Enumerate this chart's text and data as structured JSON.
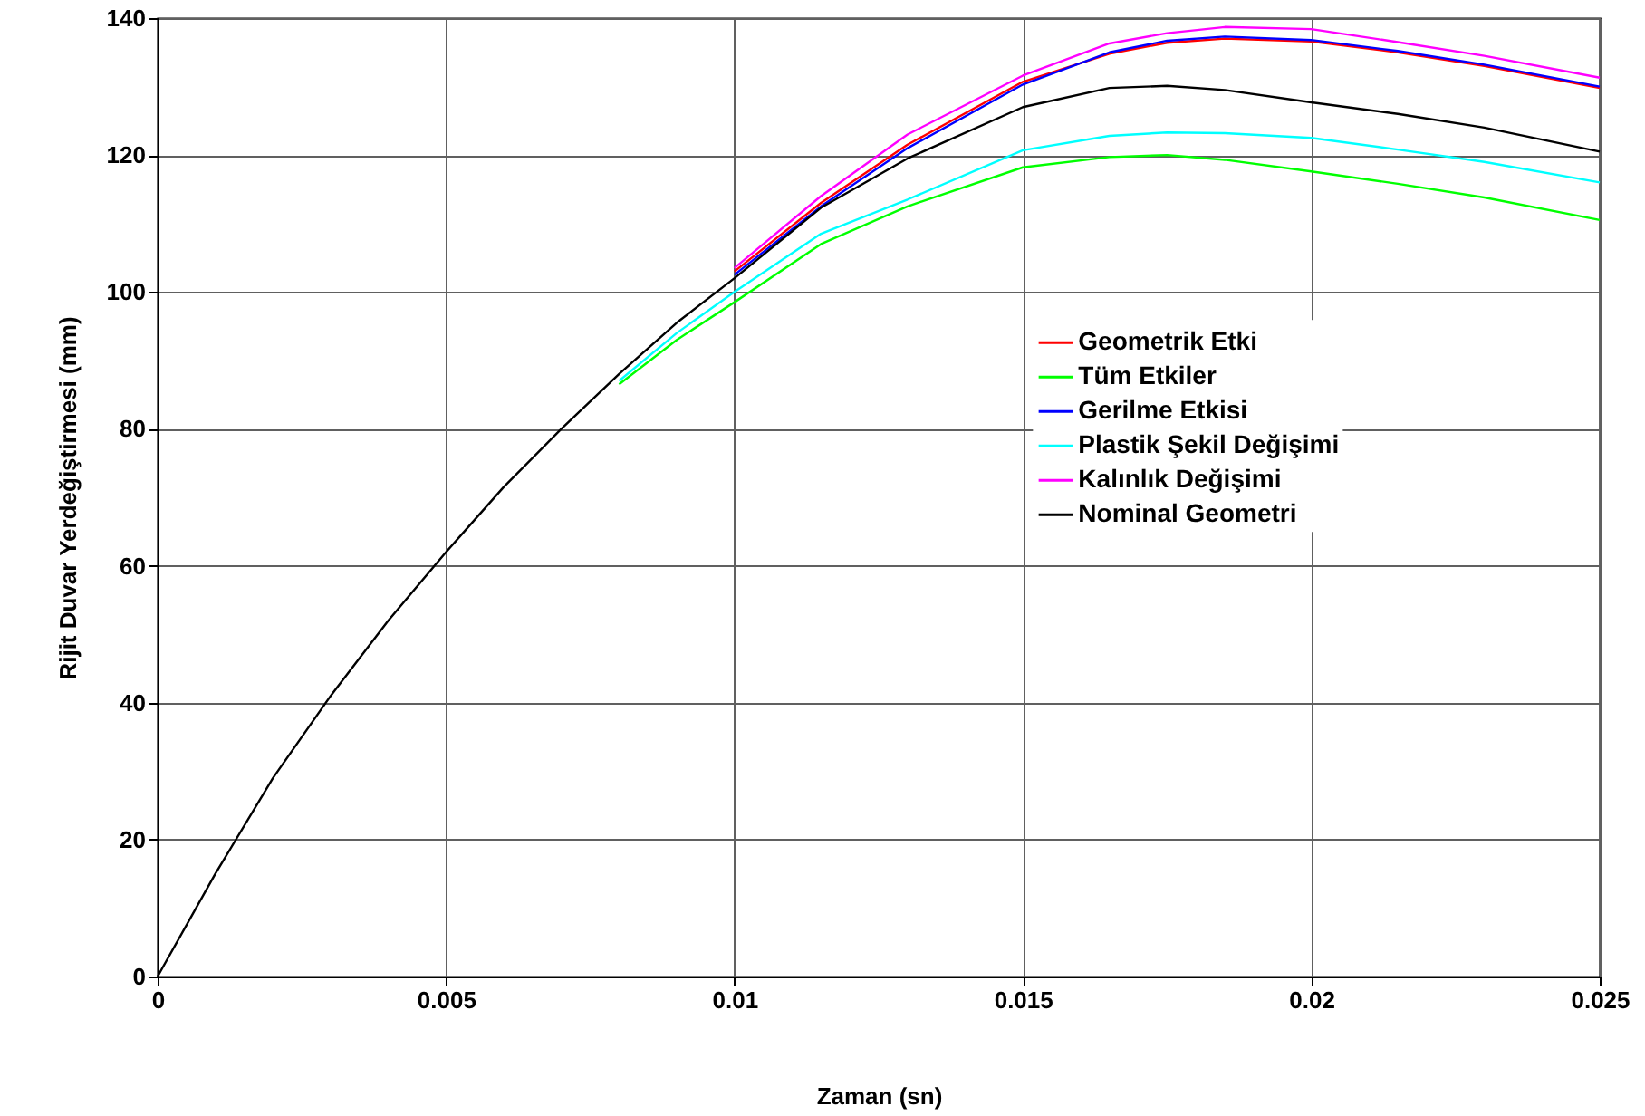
{
  "chart_data": {
    "type": "line",
    "xlabel": "Zaman (sn)",
    "ylabel": "Rijit Duvar Yerdeğiştirmesi (mm)",
    "x": [
      0,
      0.001,
      0.002,
      0.003,
      0.004,
      0.005,
      0.006,
      0.007,
      0.008,
      0.009,
      0.01,
      0.0115,
      0.013,
      0.015,
      0.0165,
      0.0175,
      0.0185,
      0.02,
      0.0215,
      0.023,
      0.025
    ],
    "series": [
      {
        "name": "Geometrik Etki",
        "color": "#ff0000",
        "values": [
          null,
          null,
          null,
          null,
          null,
          null,
          null,
          null,
          null,
          null,
          103,
          113,
          121.5,
          130.7,
          134.8,
          136.4,
          137,
          136.6,
          135,
          133,
          129.8
        ]
      },
      {
        "name": "Tüm Etkiler",
        "color": "#00ff00",
        "values": [
          null,
          null,
          null,
          null,
          null,
          null,
          null,
          null,
          86.5,
          93,
          98.5,
          107,
          112.5,
          118.2,
          119.7,
          120,
          119.3,
          117.6,
          115.8,
          113.8,
          110.5
        ]
      },
      {
        "name": "Gerilme Etkisi",
        "color": "#0000ff",
        "values": [
          null,
          null,
          null,
          null,
          null,
          null,
          null,
          null,
          null,
          null,
          102.5,
          112.5,
          121,
          130.3,
          135,
          136.7,
          137.3,
          136.8,
          135.2,
          133.2,
          130
        ]
      },
      {
        "name": "Plastik Şekil Değişimi",
        "color": "#00ffff",
        "values": [
          null,
          null,
          null,
          null,
          null,
          null,
          null,
          null,
          87,
          94,
          100,
          108.5,
          113.5,
          120.7,
          122.8,
          123.3,
          123.2,
          122.5,
          120.8,
          119,
          116
        ]
      },
      {
        "name": "Kalınlık Değişimi",
        "color": "#ff00ff",
        "values": [
          null,
          null,
          null,
          null,
          null,
          null,
          null,
          null,
          null,
          null,
          103.5,
          114,
          123,
          131.6,
          136.3,
          137.8,
          138.7,
          138.4,
          136.5,
          134.5,
          131.3
        ]
      },
      {
        "name": "Nominal Geometri",
        "color": "#000000",
        "values": [
          0,
          15,
          29,
          41,
          52,
          62,
          71.5,
          80,
          88,
          95.5,
          102,
          112.3,
          119.5,
          127,
          129.8,
          130.1,
          129.5,
          127.7,
          126,
          124,
          120.5
        ]
      }
    ],
    "xlim": [
      0,
      0.025
    ],
    "xticks": [
      0,
      0.005,
      0.01,
      0.015,
      0.02,
      0.025
    ],
    "ylim": [
      0,
      140
    ],
    "yticks": [
      0,
      20,
      40,
      60,
      80,
      100,
      120,
      140
    ],
    "grid": true,
    "legend": "right",
    "line_style": "solid",
    "marker": "none"
  }
}
